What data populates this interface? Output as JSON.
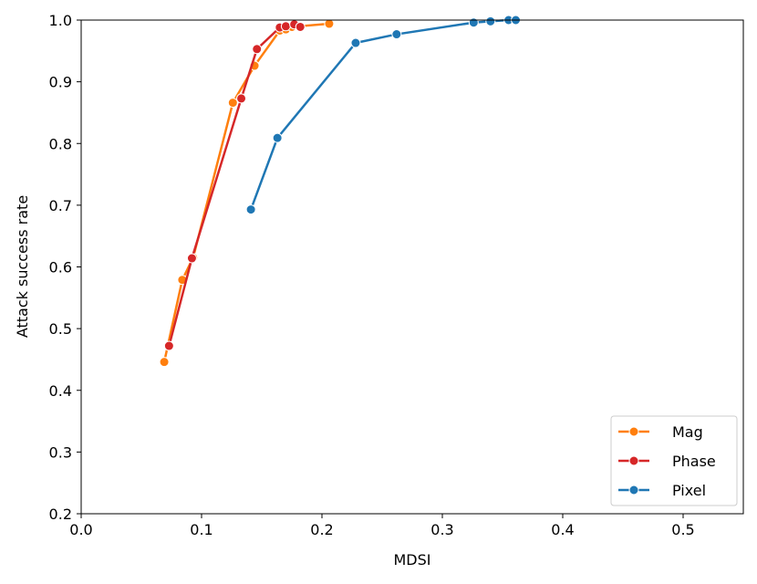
{
  "chart_data": {
    "type": "line",
    "title": "",
    "xlabel": "MDSI",
    "ylabel": "Attack success rate",
    "xlim": [
      0.0,
      0.55
    ],
    "ylim": [
      0.2,
      1.0
    ],
    "xticks": [
      "0.0",
      "0.1",
      "0.2",
      "0.3",
      "0.4",
      "0.5"
    ],
    "yticks": [
      "0.2",
      "0.3",
      "0.4",
      "0.5",
      "0.6",
      "0.7",
      "0.8",
      "0.9",
      "1.0"
    ],
    "grid": false,
    "legend_position": "lower-right",
    "series": [
      {
        "name": "Mag",
        "color": "#ff7f0e",
        "x": [
          0.069,
          0.084,
          0.093,
          0.126,
          0.144,
          0.165,
          0.17,
          0.175,
          0.206
        ],
        "y": [
          0.446,
          0.579,
          0.615,
          0.866,
          0.926,
          0.983,
          0.985,
          0.989,
          0.994
        ]
      },
      {
        "name": "Phase",
        "color": "#d62728",
        "x": [
          0.073,
          0.092,
          0.133,
          0.146,
          0.165,
          0.17,
          0.177,
          0.182
        ],
        "y": [
          0.472,
          0.614,
          0.873,
          0.953,
          0.988,
          0.99,
          0.993,
          0.989
        ]
      },
      {
        "name": "Pixel",
        "color": "#1f77b4",
        "x": [
          0.141,
          0.163,
          0.228,
          0.262,
          0.326,
          0.34,
          0.355,
          0.361
        ],
        "y": [
          0.693,
          0.809,
          0.963,
          0.977,
          0.996,
          0.998,
          1.0,
          1.0
        ]
      }
    ]
  }
}
